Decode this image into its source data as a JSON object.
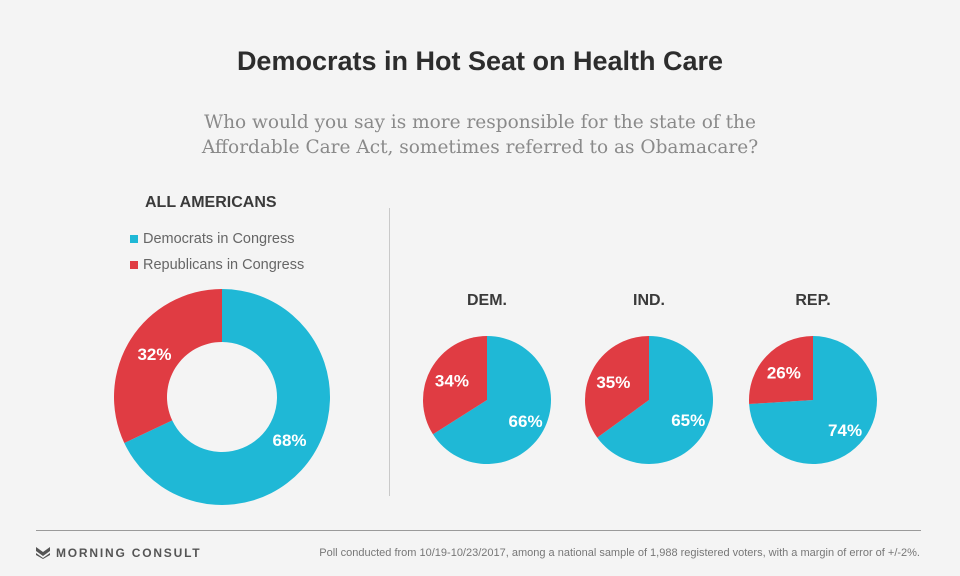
{
  "title": "Democrats in Hot Seat on Health Care",
  "subtitle": "Who would you say is more responsible for the state of the Affordable Care Act, sometimes referred to as Obamacare?",
  "colors": {
    "democrats": "#1fb8d6",
    "republicans": "#e03c43"
  },
  "legend": [
    {
      "label": "Democrats in Congress",
      "color": "#1fb8d6"
    },
    {
      "label": "Republicans in Congress",
      "color": "#e03c43"
    }
  ],
  "chart_data": [
    {
      "type": "pie",
      "title": "ALL AMERICANS",
      "donut": true,
      "slices": [
        {
          "name": "Democrats in Congress",
          "value": 68,
          "label": "68%"
        },
        {
          "name": "Republicans in Congress",
          "value": 32,
          "label": "32%"
        }
      ]
    },
    {
      "type": "pie",
      "title": "DEM.",
      "slices": [
        {
          "name": "Democrats in Congress",
          "value": 66,
          "label": "66%"
        },
        {
          "name": "Republicans in Congress",
          "value": 34,
          "label": "34%"
        }
      ]
    },
    {
      "type": "pie",
      "title": "IND.",
      "slices": [
        {
          "name": "Democrats in Congress",
          "value": 65,
          "label": "65%"
        },
        {
          "name": "Republicans in Congress",
          "value": 35,
          "label": "35%"
        }
      ]
    },
    {
      "type": "pie",
      "title": "REP.",
      "slices": [
        {
          "name": "Democrats in Congress",
          "value": 74,
          "label": "74%"
        },
        {
          "name": "Republicans in Congress",
          "value": 26,
          "label": "26%"
        }
      ]
    }
  ],
  "footer": {
    "brand": "MORNING CONSULT",
    "note": "Poll conducted from 10/19-10/23/2017, among a national sample of 1,988 registered voters, with a margin of error of +/-2%."
  }
}
